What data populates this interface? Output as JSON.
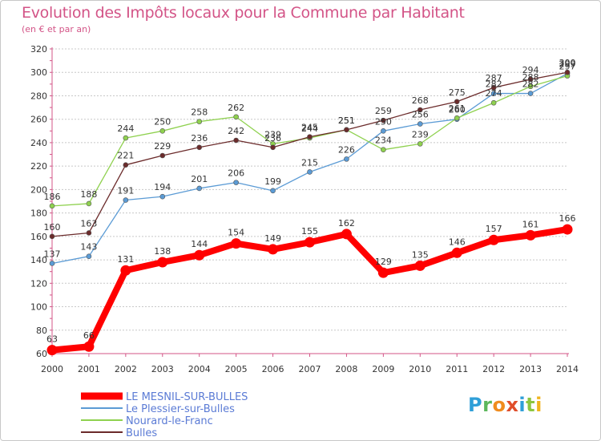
{
  "header": {
    "title": "Evolution des Impôts locaux pour la Commune par Habitant",
    "subtitle": "(en € et par an)"
  },
  "logo": {
    "text": "Proxiti",
    "letters": [
      "P",
      "r",
      "o",
      "x",
      "i",
      "t",
      "i"
    ]
  },
  "colors": {
    "title": "#d35487",
    "grid": "#c8c8c8",
    "axis": "#d35487"
  },
  "chart_data": {
    "type": "line",
    "x": [
      2000,
      2001,
      2002,
      2003,
      2004,
      2005,
      2006,
      2007,
      2008,
      2009,
      2010,
      2011,
      2012,
      2013,
      2014
    ],
    "ylim": [
      60,
      320
    ],
    "yticks": [
      60,
      80,
      100,
      120,
      140,
      160,
      180,
      200,
      220,
      240,
      260,
      280,
      300,
      320
    ],
    "grid": "horizontal dashed",
    "legend_placement": "bottom-left",
    "title": "Evolution des Impôts locaux pour la Commune par Habitant",
    "subtitle": "(en € et par an)",
    "series": [
      {
        "name": "LE MESNIL-SUR-BULLES",
        "color": "#ff0000",
        "values": [
          63,
          66,
          131,
          138,
          144,
          154,
          149,
          155,
          162,
          129,
          135,
          146,
          157,
          161,
          166
        ]
      },
      {
        "name": "Le Plessier-sur-Bulles",
        "color": "#5b9bd5",
        "values": [
          137,
          143,
          191,
          194,
          201,
          206,
          199,
          215,
          226,
          250,
          256,
          260,
          282,
          282,
          299
        ]
      },
      {
        "name": "Nourard-le-Franc",
        "color": "#8fd14f",
        "values": [
          186,
          188,
          244,
          250,
          258,
          262,
          239,
          244,
          251,
          234,
          239,
          261,
          274,
          288,
          297
        ]
      },
      {
        "name": "Bulles",
        "color": "#6b2b2b",
        "values": [
          160,
          163,
          221,
          229,
          236,
          242,
          236,
          245,
          251,
          259,
          268,
          275,
          287,
          294,
          300
        ]
      }
    ],
    "label_texts": {
      "LE MESNIL-SUR-BULLES": [
        "63",
        "66",
        "131",
        "138",
        "144",
        "154",
        "149",
        "155",
        "162",
        "129",
        "135",
        "146",
        "157",
        "161",
        "166"
      ],
      "Le Plessier-sur-Bulles": [
        "137",
        "143",
        "191",
        "194",
        "201",
        "206",
        "199",
        "215",
        "226",
        "250",
        "256",
        "260",
        "282",
        "282",
        "299"
      ],
      "Nourard-le-Franc": [
        "186",
        "188",
        "244",
        "250",
        "258",
        "262",
        "239",
        "244",
        "251",
        "234",
        "239",
        "261",
        "274",
        "288",
        "297"
      ],
      "Bulles": [
        "160",
        "163",
        "221",
        "229",
        "236",
        "242",
        "236",
        "245",
        "251",
        "259",
        "268",
        "275",
        "287",
        "294",
        "300"
      ]
    }
  }
}
